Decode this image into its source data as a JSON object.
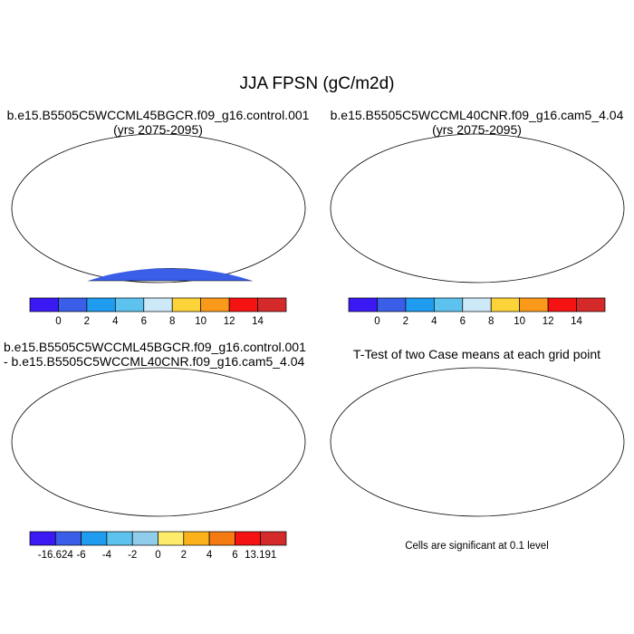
{
  "figure": {
    "title": "JJA FPSN (gC/m2d)"
  },
  "panels": [
    {
      "id": "control",
      "title_line1": "b.e15.B5505C5WCCML45BGCR.f09_g16.control.001",
      "title_line2": "(yrs 2075-2095)",
      "colorbar": {
        "colors": [
          "#3a19f2",
          "#3a5ee8",
          "#1f9bf0",
          "#5ec2ee",
          "#cde8f6",
          "#fdd33a",
          "#fb9a1a",
          "#f51212",
          "#d42a2a"
        ],
        "labels": [
          "0",
          "2",
          "4",
          "6",
          "8",
          "10",
          "12",
          "14"
        ]
      }
    },
    {
      "id": "cam5",
      "title_line1": "b.e15.B5505C5WCCML40CNR.f09_g16.cam5_4.04",
      "title_line2": "(yrs 2075-2095)",
      "colorbar": {
        "colors": [
          "#3a19f2",
          "#3a5ee8",
          "#1f9bf0",
          "#5ec2ee",
          "#cde8f6",
          "#fdd33a",
          "#fb9a1a",
          "#f51212",
          "#d42a2a"
        ],
        "labels": [
          "0",
          "2",
          "4",
          "6",
          "8",
          "10",
          "12",
          "14"
        ]
      }
    },
    {
      "id": "difference",
      "title_line1": "b.e15.B5505C5WCCML45BGCR.f09_g16.control.001",
      "title_line2": "- b.e15.B5505C5WCCML40CNR.f09_g16.cam5_4.04",
      "colorbar": {
        "colors": [
          "#3a19f2",
          "#3a5ee8",
          "#1f9bf0",
          "#5ec2ee",
          "#8fcdea",
          "#fdec6a",
          "#fbb21a",
          "#f57a12",
          "#f51212",
          "#d42a2a"
        ],
        "labels": [
          "-16.624",
          "-6",
          "-4",
          "-2",
          "0",
          "2",
          "4",
          "6",
          "13.191"
        ]
      }
    },
    {
      "id": "ttest",
      "title_line1": "T-Test of two Case means at each grid point",
      "note": "Cells are significant at 0.1 level"
    }
  ],
  "map_colors": {
    "ocean": "#ffffff",
    "outline": "#000000",
    "significant": "#ee1111",
    "antarctica_abs": "#3a5ee8",
    "antarctica_diff": "#fdec6a"
  }
}
